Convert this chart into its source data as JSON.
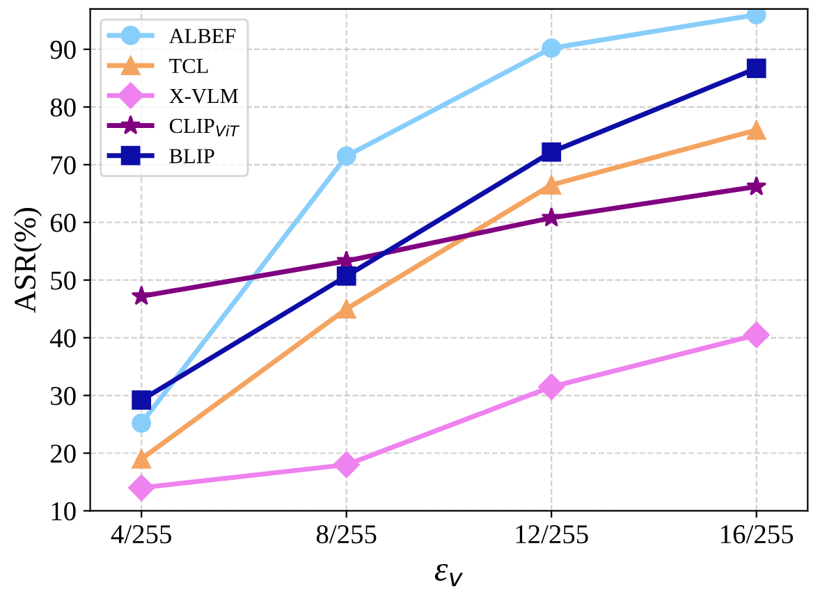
{
  "chart_data": {
    "type": "line",
    "xlabel": "ε$_{v}$",
    "ylabel": "ASR(%)",
    "categories": [
      "4/255",
      "8/255",
      "12/255",
      "16/255"
    ],
    "series": [
      {
        "name": "ALBEF",
        "color": "#87cefa",
        "marker": "circle",
        "values": [
          25.2,
          71.5,
          90.2,
          96.0
        ]
      },
      {
        "name": "TCL",
        "color": "#f4a460",
        "marker": "triangle",
        "values": [
          19.0,
          45.0,
          66.5,
          76.0
        ]
      },
      {
        "name": "X-VLM",
        "color": "#ee82ee",
        "marker": "diamond",
        "values": [
          14.0,
          18.0,
          31.5,
          40.5
        ]
      },
      {
        "name": "CLIP$_{ViT}$",
        "color": "#800080",
        "marker": "star",
        "values": [
          47.2,
          53.3,
          60.8,
          66.2
        ]
      },
      {
        "name": "BLIP",
        "color": "#0d0da8",
        "marker": "square",
        "values": [
          29.2,
          50.7,
          72.2,
          86.7
        ]
      }
    ],
    "ylim": [
      10,
      97
    ],
    "yticks": [
      10,
      20,
      30,
      40,
      50,
      60,
      70,
      80,
      90
    ],
    "grid": true,
    "legend": "top left",
    "line_style": "solid"
  }
}
